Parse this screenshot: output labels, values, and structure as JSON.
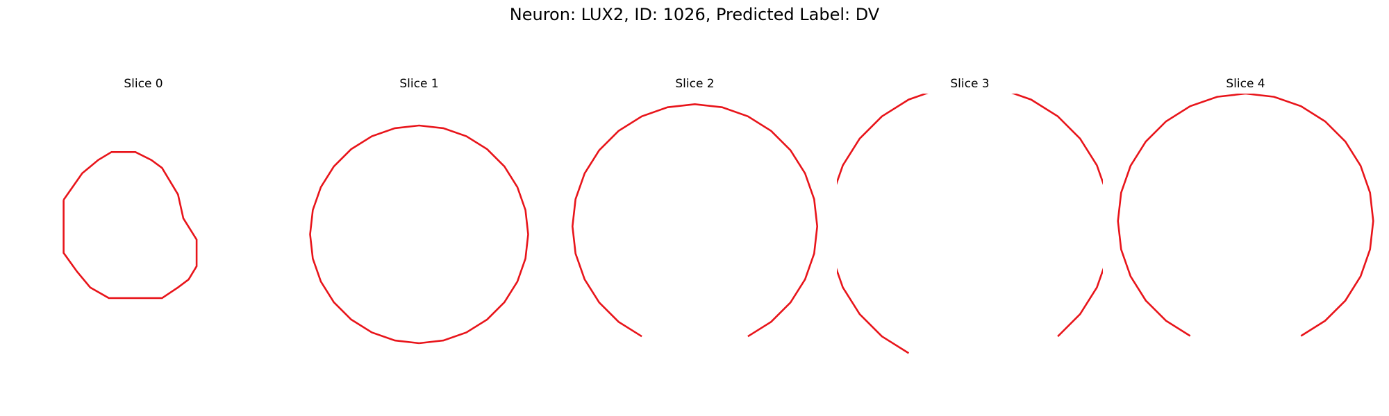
{
  "title": "Neuron: LUX2, ID: 1026, Predicted Label: DV",
  "panels": [
    {
      "title": "Slice 0"
    },
    {
      "title": "Slice 1"
    },
    {
      "title": "Slice 2"
    },
    {
      "title": "Slice 3"
    },
    {
      "title": "Slice 4"
    }
  ]
}
